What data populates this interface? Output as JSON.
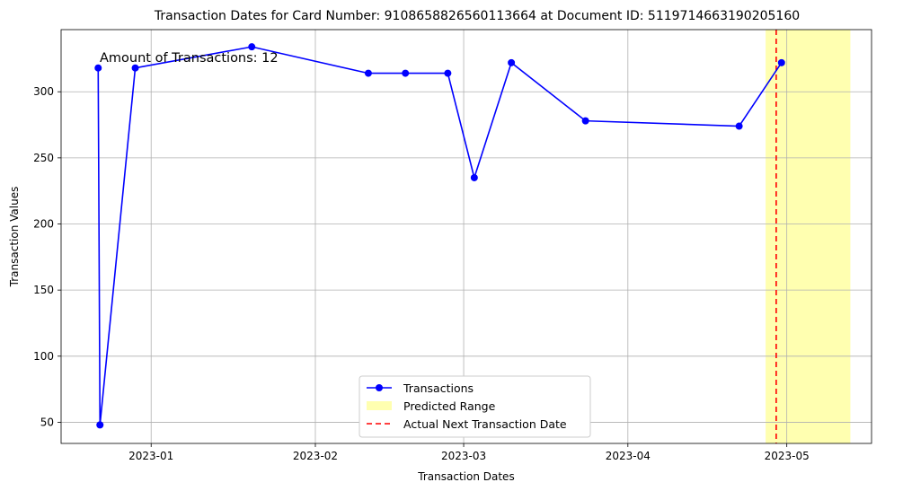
{
  "chart_data": {
    "type": "line",
    "title": "Transaction Dates for Card Number: 9108658826560113664 at Document ID: 5119714663190205160",
    "xlabel": "Transaction Dates",
    "ylabel": "Transaction Values",
    "annotation": "Amount of Transactions: 12",
    "x_tick_labels": [
      "2023-01",
      "2023-02",
      "2023-03",
      "2023-04",
      "2023-05"
    ],
    "x_ticks": [
      "2023-01-01",
      "2023-02-01",
      "2023-03-01",
      "2023-04-01",
      "2023-05-01"
    ],
    "y_ticks": [
      50,
      100,
      150,
      200,
      250,
      300
    ],
    "xlim": [
      "2022-12-15",
      "2023-05-17"
    ],
    "ylim": [
      34,
      347
    ],
    "grid": true,
    "legend_position": "bottom-center",
    "series": [
      {
        "name": "Transactions",
        "color": "#0000ff",
        "marker": "circle",
        "points": [
          {
            "x": "2022-12-22",
            "y": 318
          },
          {
            "x": "2022-12-22",
            "y": 48
          },
          {
            "x": "2022-12-29",
            "y": 318
          },
          {
            "x": "2023-01-20",
            "y": 334
          },
          {
            "x": "2023-02-11",
            "y": 314
          },
          {
            "x": "2023-02-18",
            "y": 314
          },
          {
            "x": "2023-02-26",
            "y": 314
          },
          {
            "x": "2023-03-03",
            "y": 235
          },
          {
            "x": "2023-03-10",
            "y": 322
          },
          {
            "x": "2023-03-24",
            "y": 278
          },
          {
            "x": "2023-04-22",
            "y": 274
          },
          {
            "x": "2023-04-30",
            "y": 322
          }
        ]
      }
    ],
    "predicted_range": {
      "label": "Predicted Range",
      "start": "2023-04-27",
      "end": "2023-05-13",
      "color": "#ffffb0"
    },
    "actual_next_date": {
      "label": "Actual Next Transaction Date",
      "x": "2023-04-29",
      "color": "#ff0000"
    }
  }
}
